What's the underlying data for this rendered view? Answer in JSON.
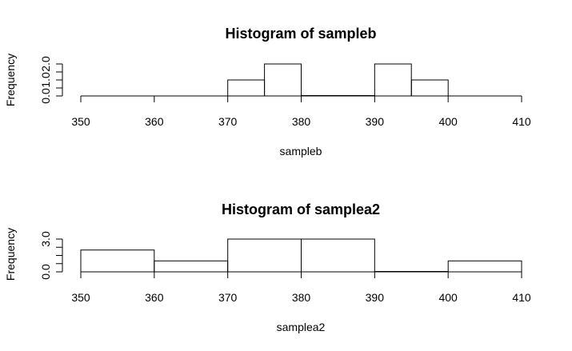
{
  "chart_data": [
    {
      "type": "bar",
      "title": "Histogram of sampleb",
      "xlabel": "sampleb",
      "ylabel": "Frequency",
      "xlim": [
        350,
        410
      ],
      "ylim": [
        0,
        2
      ],
      "x_ticks": [
        "350",
        "360",
        "370",
        "380",
        "390",
        "400",
        "410"
      ],
      "y_ticks": [
        "0.0",
        "1.0",
        "2.0"
      ],
      "bins": [
        {
          "start": 370,
          "end": 375,
          "count": 1
        },
        {
          "start": 375,
          "end": 380,
          "count": 2
        },
        {
          "start": 380,
          "end": 385,
          "count": 0
        },
        {
          "start": 385,
          "end": 390,
          "count": 0
        },
        {
          "start": 390,
          "end": 395,
          "count": 2
        },
        {
          "start": 395,
          "end": 400,
          "count": 1
        }
      ]
    },
    {
      "type": "bar",
      "title": "Histogram of samplea2",
      "xlabel": "samplea2",
      "ylabel": "Frequency",
      "xlim": [
        350,
        410
      ],
      "ylim": [
        0,
        3
      ],
      "x_ticks": [
        "350",
        "360",
        "370",
        "380",
        "390",
        "400",
        "410"
      ],
      "y_ticks": [
        "0.0",
        "3.0"
      ],
      "bins": [
        {
          "start": 350,
          "end": 360,
          "count": 2
        },
        {
          "start": 360,
          "end": 370,
          "count": 1
        },
        {
          "start": 370,
          "end": 380,
          "count": 3
        },
        {
          "start": 380,
          "end": 390,
          "count": 3
        },
        {
          "start": 390,
          "end": 400,
          "count": 0
        },
        {
          "start": 400,
          "end": 410,
          "count": 1
        }
      ]
    }
  ]
}
